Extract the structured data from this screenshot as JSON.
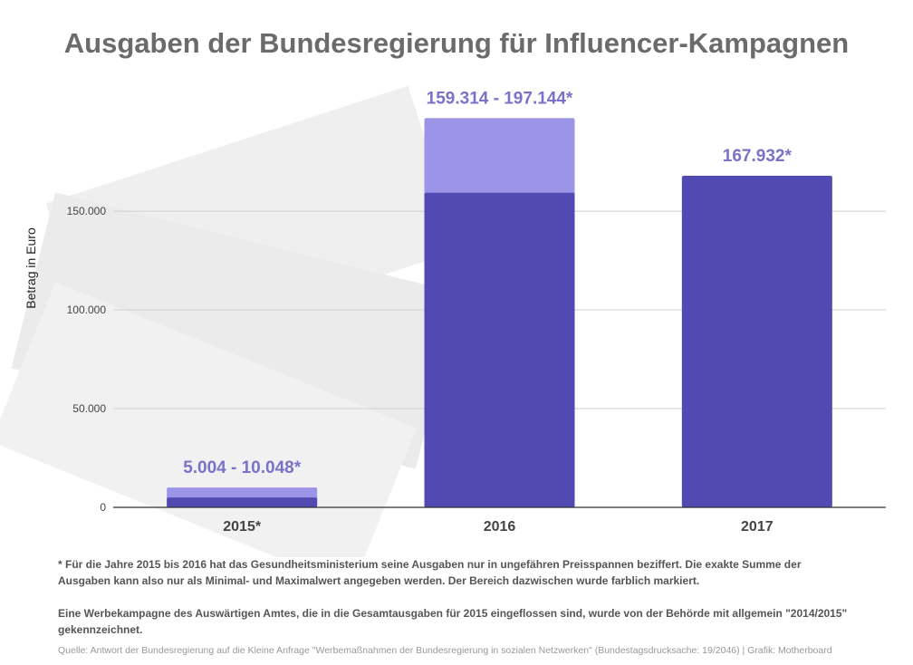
{
  "title": "Ausgaben der Bundesregierung für Influencer-Kampagnen",
  "chart_data": {
    "type": "bar",
    "ylabel": "Betrag in Euro",
    "xlabel": "",
    "ylim": [
      0,
      195000
    ],
    "yticks": [
      0,
      50000,
      100000,
      150000
    ],
    "ytick_labels": [
      "0",
      "50.000",
      "100.000",
      "150.000"
    ],
    "grid": true,
    "categories": [
      "2015*",
      "2016",
      "2017"
    ],
    "bars": [
      {
        "category": "2015*",
        "min": 5004,
        "max": 10048,
        "label": "5.004 - 10.048*"
      },
      {
        "category": "2016",
        "min": 159314,
        "max": 197144,
        "label": "159.314 - 197.144*"
      },
      {
        "category": "2017",
        "min": 167932,
        "max": 167932,
        "label": "167.932*"
      }
    ],
    "colors": {
      "value": "#514ab3",
      "range": "#9c94e6",
      "data_label": "#7a72c9",
      "grid": "#cfcfcf",
      "axis": "#333333"
    }
  },
  "notes": {
    "footnote": "* Für die Jahre 2015 bis 2016 hat das Gesundheitsministerium seine Ausgaben nur in ungefähren Preisspannen beziffert. Die exakte Summe der Ausgaben kann also nur als Minimal- und Maximalwert angegeben werden. Der Bereich dazwischen wurde farblich markiert.",
    "remark": "Eine Werbekampagne des Auswärtigen Amtes, die in die Gesamtausgaben für 2015 eingeflossen sind, wurde von der Behörde mit allgemein \"2014/2015\" gekennzeichnet."
  },
  "source": "Quelle: Antwort der Bundesregierung auf die Kleine Anfrage \"Werbemaßnahmen der Bundesregierung in sozialen Netzwerken\" (Bundestagsdrucksache: 19/2046) | Grafik: Motherboard"
}
